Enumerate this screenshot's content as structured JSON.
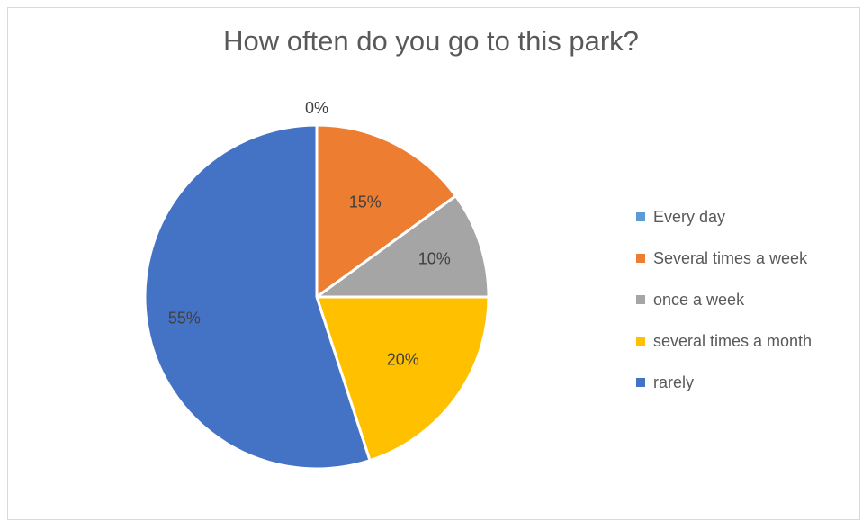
{
  "chart_data": {
    "type": "pie",
    "title": "How often do you go to this park?",
    "categories": [
      "Every day",
      "Several times a week",
      "once a week",
      "several times a month",
      "rarely"
    ],
    "values": [
      0,
      15,
      10,
      20,
      55
    ],
    "labels": [
      "0%",
      "15%",
      "10%",
      "20%",
      "55%"
    ],
    "colors": [
      "#5B9BD5",
      "#ED7D31",
      "#A5A5A5",
      "#FFC000",
      "#4472C4"
    ],
    "legend_position": "right",
    "start_angle": "12 o'clock",
    "direction": "clockwise"
  }
}
